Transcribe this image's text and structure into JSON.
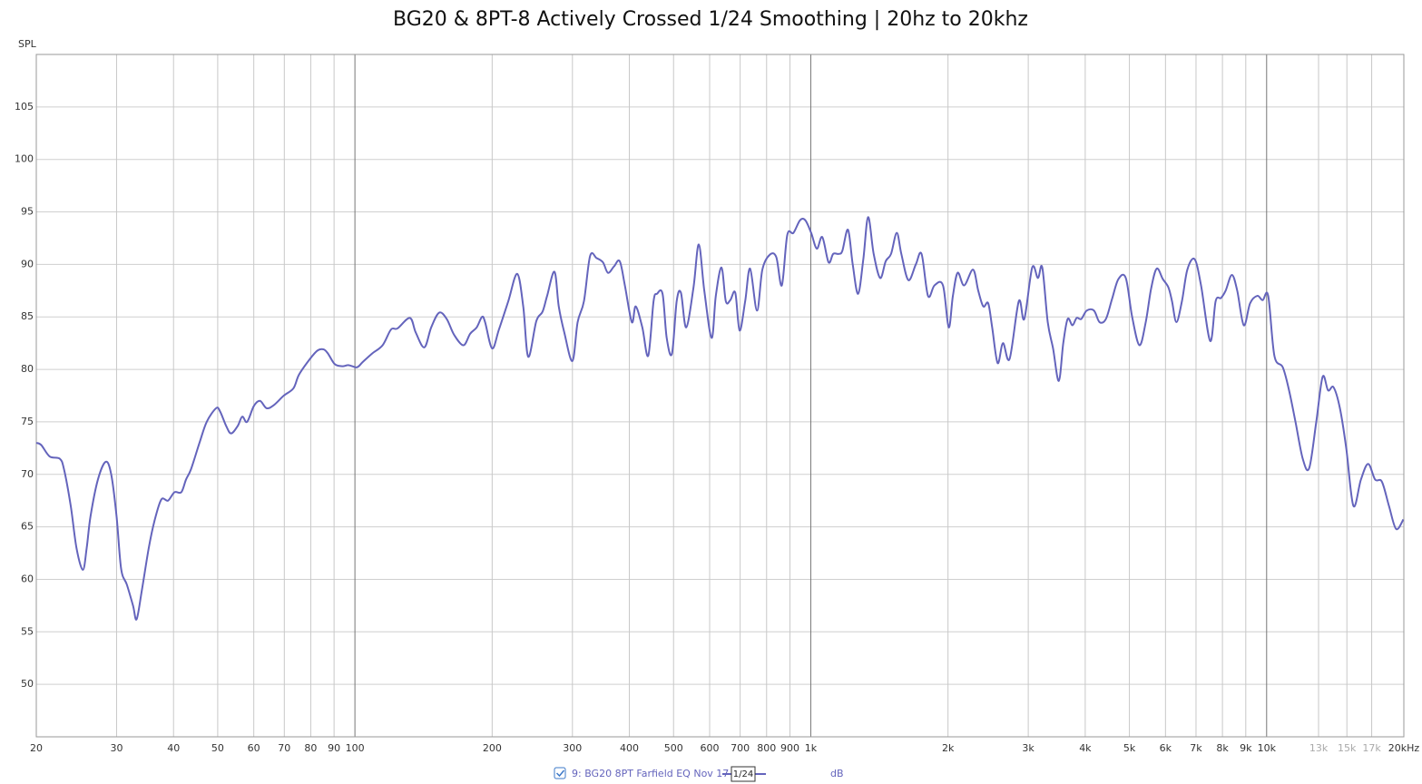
{
  "chart_data": {
    "type": "line",
    "title": "BG20 & 8PT-8 Actively Crossed 1/24 Smoothing | 20hz to 20khz",
    "y_label": "SPL",
    "log_x": true,
    "grid": true,
    "smoothing": "1/24",
    "unit": "dB",
    "xlim": [
      20,
      20000
    ],
    "ylim": [
      45,
      110
    ],
    "yticks": [
      50,
      55,
      60,
      65,
      70,
      75,
      80,
      85,
      90,
      95,
      100,
      105
    ],
    "xticks": [
      20,
      30,
      40,
      50,
      60,
      70,
      80,
      90,
      100,
      200,
      300,
      400,
      500,
      600,
      700,
      800,
      900,
      {
        "value": 1000,
        "label": "1k"
      },
      {
        "value": 2000,
        "label": "2k"
      },
      {
        "value": 3000,
        "label": "3k"
      },
      {
        "value": 4000,
        "label": "4k"
      },
      {
        "value": 5000,
        "label": "5k"
      },
      {
        "value": 6000,
        "label": "6k"
      },
      {
        "value": 7000,
        "label": "7k"
      },
      {
        "value": 8000,
        "label": "8k"
      },
      {
        "value": 9000,
        "label": "9k"
      },
      {
        "value": 10000,
        "label": "10k"
      },
      {
        "value": 13000,
        "label": "13k"
      },
      {
        "value": 15000,
        "label": "15k"
      },
      {
        "value": 17000,
        "label": "17k"
      },
      {
        "value": 20000,
        "label": "20kHz"
      }
    ],
    "x": [
      20,
      20.5,
      21.4,
      22.5,
      23,
      23.8,
      24.5,
      25.3,
      25.8,
      26.3,
      27.3,
      28.4,
      29.2,
      30,
      30.7,
      31.6,
      32.6,
      33.2,
      34.1,
      35.3,
      36.3,
      37.6,
      38.9,
      40.2,
      41.6,
      42.6,
      43.7,
      45.6,
      47.3,
      49.6,
      50.6,
      52.2,
      53.5,
      55.3,
      56.6,
      58,
      60,
      61.9,
      64,
      66.4,
      69.8,
      73.3,
      75.4,
      79.7,
      82.8,
      85.4,
      87.3,
      90.3,
      93.8,
      96.9,
      101,
      104,
      109,
      115,
      120,
      124,
      132,
      136,
      142,
      147,
      153,
      159,
      165,
      173,
      179,
      185,
      190,
      193,
      200,
      207,
      217,
      227,
      234,
      240,
      250,
      258,
      264,
      274,
      280,
      288,
      300,
      308,
      318,
      328,
      339,
      350,
      359,
      370,
      381,
      391,
      405,
      413,
      427,
      440,
      452,
      460,
      473,
      483,
      496,
      508,
      519,
      533,
      553,
      568,
      584,
      606,
      619,
      637,
      651,
      666,
      683,
      698,
      718,
      736,
      762,
      783,
      812,
      840,
      864,
      888,
      916,
      947,
      973,
      1002,
      1031,
      1060,
      1094,
      1120,
      1152,
      1173,
      1207,
      1236,
      1270,
      1304,
      1336,
      1374,
      1420,
      1460,
      1500,
      1544,
      1580,
      1637,
      1700,
      1750,
      1808,
      1868,
      1950,
      2007,
      2050,
      2100,
      2170,
      2270,
      2330,
      2390,
      2450,
      2500,
      2570,
      2640,
      2730,
      2860,
      2940,
      3060,
      3150,
      3220,
      3310,
      3400,
      3500,
      3580,
      3660,
      3750,
      3830,
      3920,
      4030,
      4180,
      4300,
      4440,
      4580,
      4730,
      4910,
      5070,
      5260,
      5430,
      5580,
      5740,
      5920,
      6090,
      6200,
      6340,
      6520,
      6700,
      6950,
      7180,
      7520,
      7730,
      7940,
      8130,
      8390,
      8620,
      8910,
      9200,
      9540,
      9800,
      10080,
      10400,
      10850,
      11200,
      11570,
      12000,
      12400,
      12850,
      13270,
      13640,
      14020,
      14480,
      14950,
      15500,
      16100,
      16700,
      17300,
      17900,
      18550,
      19230,
      19950
    ],
    "series": [
      {
        "name": "9: BG20 8PT Farfield EQ Nov 17",
        "color": "#6464bc",
        "values": [
          73,
          72.8,
          71.7,
          71.5,
          70.5,
          67,
          63,
          60.9,
          63,
          66,
          69.5,
          71.2,
          70,
          66,
          61,
          59.5,
          57.5,
          56.2,
          59,
          63,
          65.5,
          67.6,
          67.5,
          68.3,
          68.3,
          69.5,
          70.5,
          73,
          75,
          76.3,
          76,
          74.6,
          73.9,
          74.6,
          75.5,
          75,
          76.5,
          77,
          76.3,
          76.6,
          77.5,
          78.2,
          79.5,
          81,
          81.8,
          81.9,
          81.5,
          80.5,
          80.3,
          80.4,
          80.2,
          80.7,
          81.5,
          82.3,
          83.8,
          83.9,
          84.9,
          83.5,
          82.1,
          84,
          85.4,
          84.8,
          83.3,
          82.3,
          83.4,
          84,
          85,
          84.5,
          82,
          83.8,
          86.5,
          89.1,
          86,
          81.2,
          84.6,
          85.5,
          87,
          89.3,
          86,
          83.5,
          80.8,
          84.5,
          86.5,
          90.8,
          90.6,
          90.2,
          89.2,
          89.8,
          90.3,
          88,
          84.5,
          86,
          84,
          81.3,
          86.5,
          87.2,
          87.2,
          83,
          81.5,
          86.5,
          87.3,
          84,
          87.8,
          91.9,
          87.5,
          83,
          87,
          89.7,
          86.5,
          86.6,
          87.3,
          83.7,
          86.5,
          89.6,
          85.6,
          89.5,
          90.9,
          90.7,
          88,
          92.8,
          93,
          94.2,
          94.2,
          93,
          91.5,
          92.6,
          90.2,
          91,
          91,
          91.3,
          93.3,
          90,
          87.2,
          90.5,
          94.5,
          91,
          88.7,
          90.3,
          91,
          93,
          91,
          88.5,
          90,
          91,
          87,
          88,
          88,
          84,
          87,
          89.2,
          88,
          89.5,
          87.5,
          86,
          86.3,
          84,
          80.6,
          82.5,
          81,
          86.5,
          84.8,
          89.7,
          88.7,
          89.7,
          84.5,
          82,
          78.9,
          82.5,
          84.8,
          84.2,
          84.9,
          84.8,
          85.6,
          85.6,
          84.5,
          84.8,
          86.7,
          88.6,
          88.7,
          85,
          82.3,
          84.5,
          87.7,
          89.6,
          88.6,
          87.8,
          86.5,
          84.5,
          86.5,
          89.5,
          90.5,
          88,
          82.7,
          86.5,
          86.8,
          87.5,
          89,
          87.5,
          84.2,
          86.3,
          87,
          86.6,
          87,
          81.3,
          80.2,
          78,
          75,
          71.5,
          70.6,
          75,
          79.3,
          78,
          78.3,
          76.3,
          72.5,
          67,
          69.5,
          71,
          69.5,
          69.3,
          67,
          64.8,
          65.7
        ]
      }
    ]
  }
}
